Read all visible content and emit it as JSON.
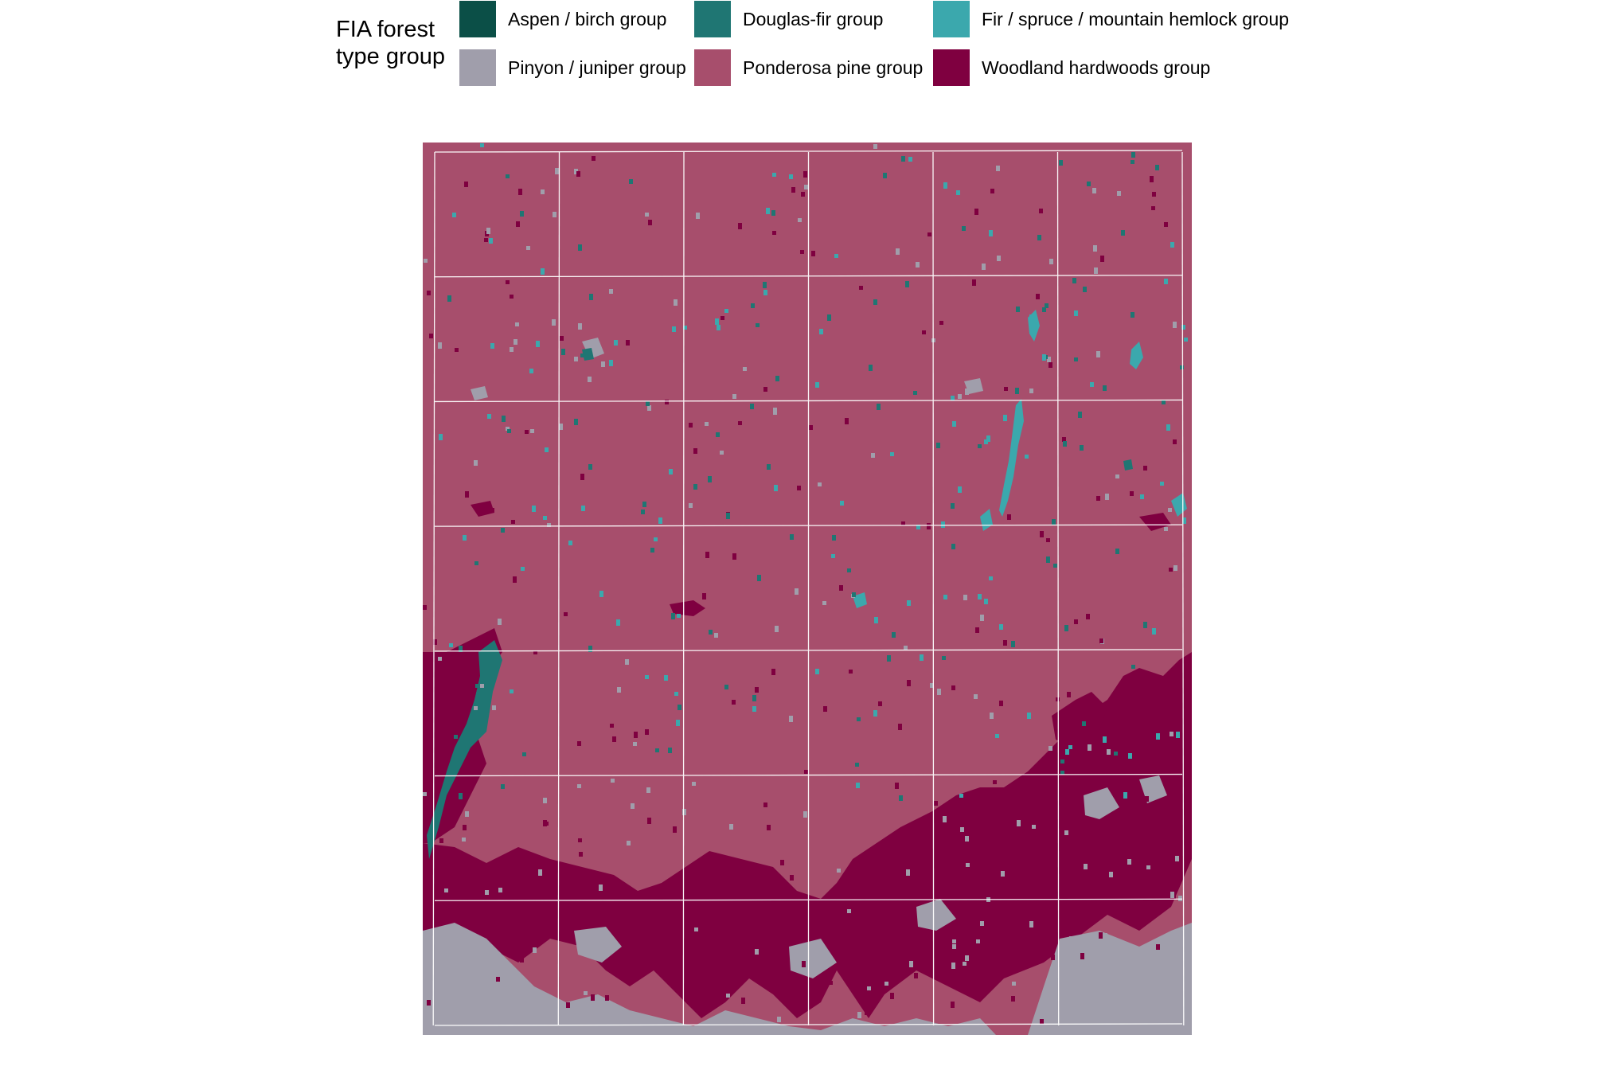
{
  "legend": {
    "title": "FIA forest\ntype group",
    "items": [
      {
        "label": "Aspen / birch group",
        "color": "#0b4f47"
      },
      {
        "label": "Douglas-fir group",
        "color": "#1f7673"
      },
      {
        "label": "Fir / spruce / mountain hemlock group",
        "color": "#3ba8ad"
      },
      {
        "label": "Pinyon / juniper group",
        "color": "#a09eab"
      },
      {
        "label": "Ponderosa pine group",
        "color": "#a74e6c"
      },
      {
        "label": "Woodland hardwoods group",
        "color": "#7f0040"
      }
    ]
  },
  "map": {
    "background_class": "Ponderosa pine group",
    "graticule_color": "#ffffff",
    "graticule": "6 x 7 cell grid over the raster"
  }
}
